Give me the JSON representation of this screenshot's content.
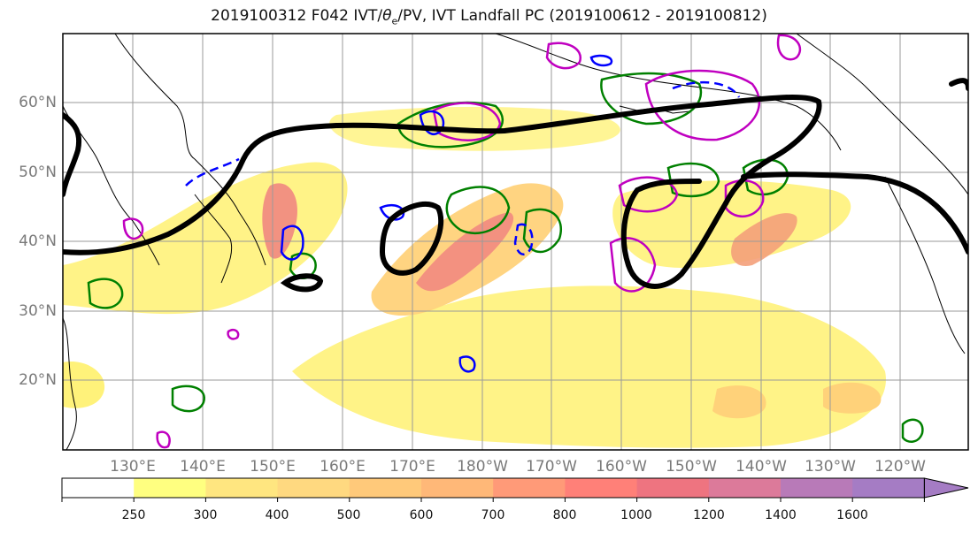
{
  "title": "2019100312 F042 IVT/θe/PV, IVT Landfall PC (2019100612 - 2019100812)",
  "title_parts": {
    "prefix": "2019100312 F042 IVT/",
    "theta": "θ",
    "sub": "e",
    "suffix": "/PV, IVT Landfall PC (2019100612 - 2019100812)"
  },
  "lat_labels": [
    "60°N",
    "50°N",
    "40°N",
    "30°N",
    "20°N"
  ],
  "lon_labels": [
    "130°E",
    "140°E",
    "150°E",
    "160°E",
    "170°E",
    "180°W",
    "170°W",
    "160°W",
    "150°W",
    "140°W",
    "130°W",
    "120°W"
  ],
  "colorbar": {
    "levels": [
      "250",
      "300",
      "400",
      "500",
      "600",
      "700",
      "800",
      "1000",
      "1200",
      "1400",
      "1600"
    ],
    "colors": [
      "#ffffff",
      "#ffff80",
      "#ffe680",
      "#ffd980",
      "#ffc97a",
      "#ffb878",
      "#ff9a78",
      "#ff8078",
      "#ee7480",
      "#dc7a9a",
      "#b87ab8",
      "#a57cc4"
    ]
  },
  "map_colors": {
    "ocean": "#ffffff",
    "coast": "#000000",
    "grid": "#9a9a9a",
    "ivt_low": "#fff27a",
    "ivt_mid": "#ffd27a",
    "ivt_high": "#f08080",
    "landfall_pc": "#000000",
    "theta_contour": "#008000",
    "pv_pos": "#c000c0",
    "pv_neg": "#0000ff"
  }
}
